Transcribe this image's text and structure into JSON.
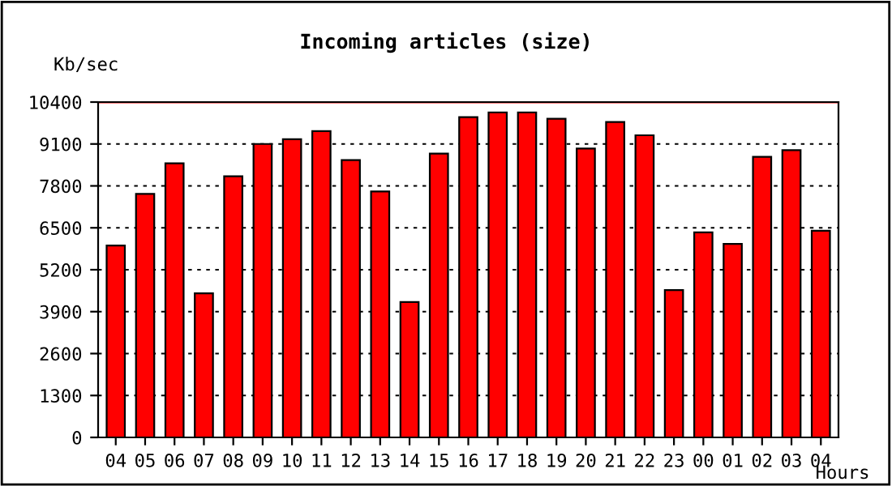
{
  "chart_data": {
    "type": "bar",
    "title": "Incoming articles (size)",
    "xlabel": "Hours",
    "ylabel": "Kb/sec",
    "categories": [
      "04",
      "05",
      "06",
      "07",
      "08",
      "09",
      "10",
      "11",
      "12",
      "13",
      "14",
      "15",
      "16",
      "17",
      "18",
      "19",
      "20",
      "21",
      "22",
      "23",
      "00",
      "01",
      "02",
      "03",
      "04"
    ],
    "values": [
      5950,
      7550,
      8500,
      4470,
      8100,
      9100,
      9250,
      9500,
      8600,
      7630,
      4200,
      8800,
      9930,
      10080,
      10080,
      9880,
      8960,
      9780,
      9370,
      4570,
      6360,
      6000,
      8700,
      8910,
      6410
    ],
    "color": "#ff0000",
    "ylim": [
      0,
      10400
    ],
    "yticks": [
      0,
      1300,
      2600,
      3900,
      5200,
      6500,
      7800,
      9100,
      10400
    ],
    "grid": "y",
    "ref_lines": [
      {
        "axis": "y",
        "value": 10400,
        "color": "#ff0000",
        "line_style": "solid"
      }
    ]
  }
}
